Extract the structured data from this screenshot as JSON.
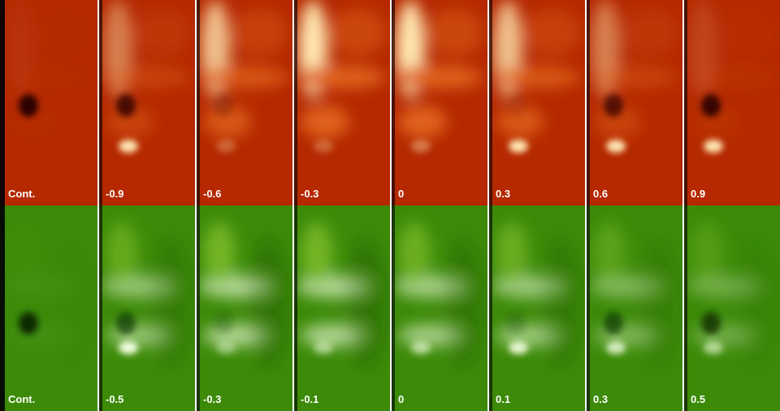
{
  "rows": [
    {
      "panels": [
        {
          "label": "Cont."
        },
        {
          "label": "-0.9"
        },
        {
          "label": "-0.6"
        },
        {
          "label": "-0.3"
        },
        {
          "label": "0"
        },
        {
          "label": "0.3"
        },
        {
          "label": "0.6"
        },
        {
          "label": "0.9"
        }
      ]
    },
    {
      "panels": [
        {
          "label": "Cont."
        },
        {
          "label": "-0.5"
        },
        {
          "label": "-0.3"
        },
        {
          "label": "-0.1"
        },
        {
          "label": "0"
        },
        {
          "label": "0.1"
        },
        {
          "label": "0.3"
        },
        {
          "label": "0.5"
        }
      ]
    }
  ]
}
